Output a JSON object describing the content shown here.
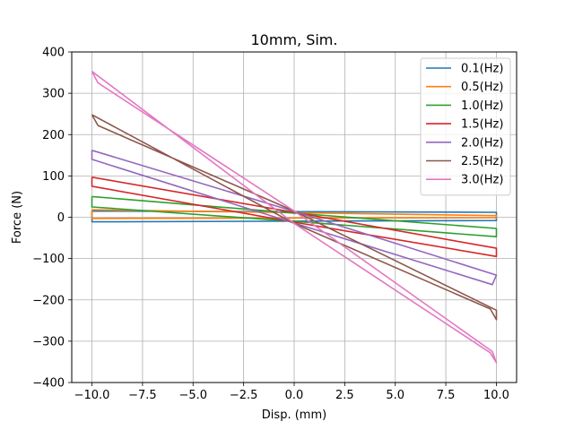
{
  "chart_data": {
    "type": "line",
    "title": "10mm, Sim.",
    "xlabel": "Disp. (mm)",
    "ylabel": "Force (N)",
    "xlim": [
      -11,
      11
    ],
    "ylim": [
      -400,
      400
    ],
    "xticks": [
      -10.0,
      -7.5,
      -5.0,
      -2.5,
      0.0,
      2.5,
      5.0,
      7.5,
      10.0
    ],
    "xtick_labels": [
      "−10.0",
      "−7.5",
      "−5.0",
      "−2.5",
      "0.0",
      "2.5",
      "5.0",
      "7.5",
      "10.0"
    ],
    "yticks": [
      -400,
      -300,
      -200,
      -100,
      0,
      100,
      200,
      300,
      400
    ],
    "ytick_labels": [
      "−400",
      "−300",
      "−200",
      "−100",
      "0",
      "100",
      "200",
      "300",
      "400"
    ],
    "grid": true,
    "legend_position": "top-right",
    "series": [
      {
        "name": "0.1(Hz)",
        "color": "#1f77b4",
        "x": [
          -10,
          10,
          10,
          -10,
          -10
        ],
        "y": [
          15,
          12,
          -8,
          -11,
          15
        ]
      },
      {
        "name": "0.5(Hz)",
        "color": "#ff7f0e",
        "x": [
          -10,
          10,
          10,
          -10,
          -10
        ],
        "y": [
          18,
          4,
          -1,
          -3,
          18
        ]
      },
      {
        "name": "1.0(Hz)",
        "color": "#2ca02c",
        "x": [
          -10,
          0,
          10,
          10,
          0,
          -10,
          -10
        ],
        "y": [
          50,
          10,
          -27,
          -47,
          -10,
          25,
          50
        ]
      },
      {
        "name": "1.5(Hz)",
        "color": "#d62728",
        "x": [
          -10,
          0,
          10,
          10,
          0,
          -10,
          -10
        ],
        "y": [
          97,
          12,
          -75,
          -95,
          -12,
          75,
          97
        ]
      },
      {
        "name": "2.0(Hz)",
        "color": "#9467bd",
        "x": [
          -10,
          0,
          10,
          9.8,
          0,
          -10,
          -10
        ],
        "y": [
          162,
          14,
          -140,
          -163,
          -14,
          140,
          162
        ]
      },
      {
        "name": "2.5(Hz)",
        "color": "#8c564b",
        "x": [
          -10,
          -9.7,
          0,
          10,
          10,
          9.7,
          0,
          -10
        ],
        "y": [
          248,
          222,
          15,
          -225,
          -248,
          -222,
          -15,
          248
        ]
      },
      {
        "name": "3.0(Hz)",
        "color": "#e377c2",
        "x": [
          -10,
          -9.7,
          0,
          9.8,
          10,
          9.7,
          0,
          -10
        ],
        "y": [
          353,
          325,
          15,
          -325,
          -352,
          -328,
          -15,
          353
        ]
      }
    ]
  }
}
